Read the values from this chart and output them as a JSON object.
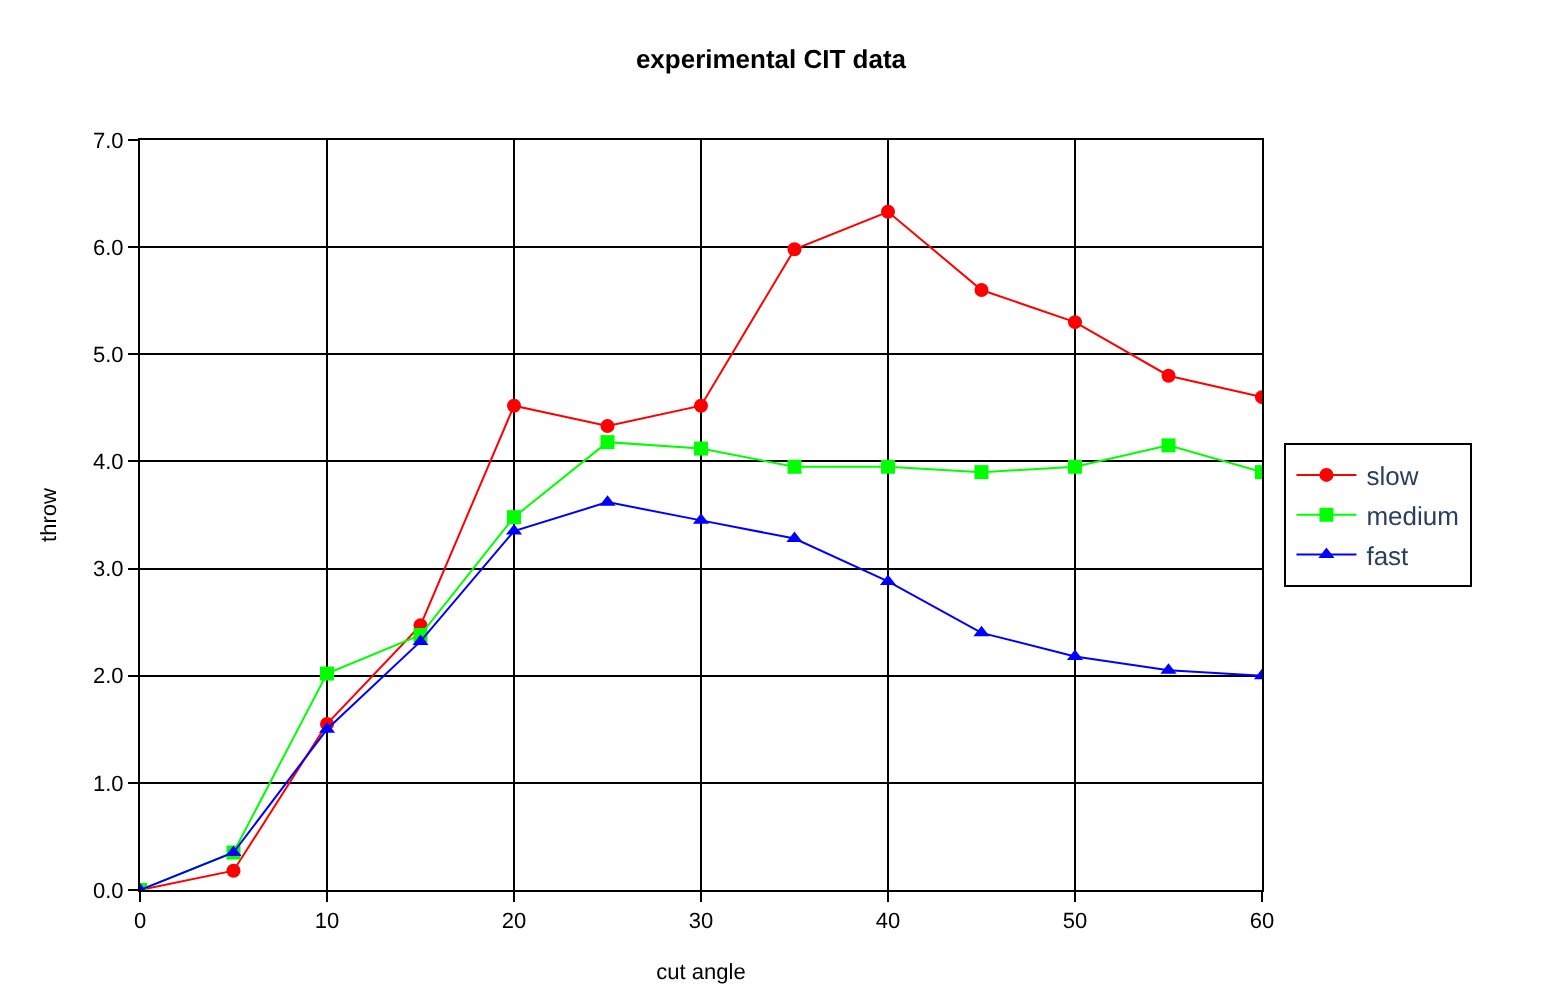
{
  "chart_data": {
    "type": "line",
    "title": "experimental CIT data",
    "xlabel": "cut angle",
    "ylabel": "throw",
    "x": [
      0,
      5,
      10,
      15,
      20,
      25,
      30,
      35,
      40,
      45,
      50,
      55,
      60
    ],
    "series": [
      {
        "name": "slow",
        "color": "#ff0000",
        "marker": "circle",
        "values": [
          0,
          0.18,
          1.55,
          2.47,
          4.52,
          4.33,
          4.52,
          5.98,
          6.33,
          5.6,
          5.3,
          4.8,
          4.6
        ]
      },
      {
        "name": "medium",
        "color": "#00ff00",
        "marker": "square",
        "values": [
          0,
          0.35,
          2.02,
          2.38,
          3.48,
          4.18,
          4.12,
          3.95,
          3.95,
          3.9,
          3.95,
          4.15,
          3.9
        ]
      },
      {
        "name": "fast",
        "color": "#0000ff",
        "marker": "triangle",
        "values": [
          0,
          0.35,
          1.5,
          2.32,
          3.35,
          3.62,
          3.45,
          3.28,
          2.88,
          2.4,
          2.18,
          2.05,
          2.0
        ]
      }
    ],
    "xlim": [
      0,
      60
    ],
    "xticks": [
      0,
      10,
      20,
      30,
      40,
      50,
      60
    ],
    "ylim": [
      0,
      7
    ],
    "yticks": [
      {
        "value": 0,
        "label": "0.0"
      },
      {
        "value": 1,
        "label": "1.0"
      },
      {
        "value": 2,
        "label": "2.0"
      },
      {
        "value": 3,
        "label": "3.0"
      },
      {
        "value": 4,
        "label": "4.0"
      },
      {
        "value": 5,
        "label": "5.0"
      },
      {
        "value": 6,
        "label": "6.0"
      },
      {
        "value": 7,
        "label": "7.0"
      }
    ],
    "grid": true,
    "legend": "right",
    "line_style": "solid"
  }
}
